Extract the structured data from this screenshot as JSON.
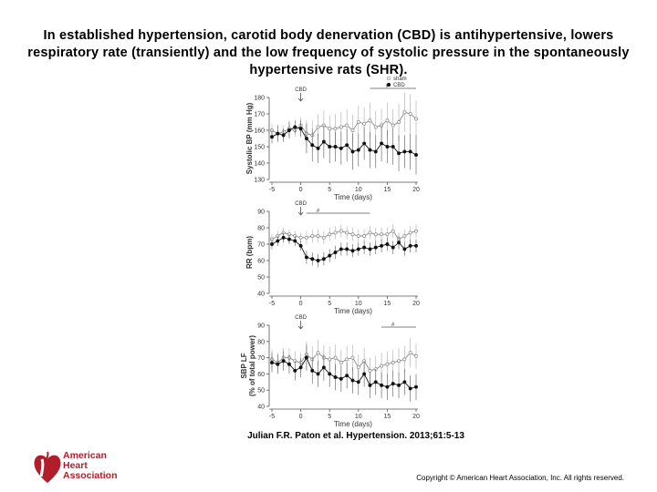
{
  "title": "In established hypertension, carotid body denervation (CBD) is antihypertensive, lowers respiratory rate (transiently) and the low frequency of systolic pressure in the spontaneously hypertensive rats (SHR).",
  "citation": "Julian F.R. Paton et al. Hypertension. 2013;61:5-13",
  "copyright": "Copyright © American Heart Association, Inc. All rights reserved.",
  "logo": {
    "line1": "American",
    "line2": "Heart",
    "line3": "Association",
    "color": "#b11d2b"
  },
  "chart_data": [
    {
      "type": "line",
      "ylabel": "Systolic BP (mm Hg)",
      "xlabel": "Time (days)",
      "xlim": [
        -5,
        20
      ],
      "ylim": [
        130,
        180
      ],
      "xticks": [
        -5,
        0,
        5,
        10,
        15,
        20
      ],
      "yticks": [
        130,
        140,
        150,
        160,
        170,
        180
      ],
      "annotation": "CBD",
      "significance": "#",
      "legend": [
        "sham",
        "CBD"
      ],
      "legend_position": "top-right",
      "series": [
        {
          "name": "sham",
          "marker": "open",
          "x": [
            -5,
            -4,
            -3,
            -2,
            -1,
            0,
            1,
            2,
            3,
            4,
            5,
            6,
            7,
            8,
            9,
            10,
            11,
            12,
            13,
            14,
            15,
            16,
            17,
            18,
            19,
            20
          ],
          "y": [
            160,
            158,
            159,
            161,
            160,
            163,
            158,
            157,
            162,
            163,
            161,
            161,
            162,
            163,
            160,
            165,
            164,
            166,
            162,
            163,
            166,
            163,
            165,
            171,
            170,
            167
          ],
          "err": [
            4,
            5,
            4,
            5,
            4,
            5,
            8,
            9,
            8,
            9,
            8,
            9,
            9,
            10,
            9,
            10,
            10,
            11,
            10,
            10,
            11,
            10,
            11,
            12,
            12,
            11
          ]
        },
        {
          "name": "CBD",
          "marker": "filled",
          "x": [
            -5,
            -4,
            -3,
            -2,
            -1,
            0,
            1,
            2,
            3,
            4,
            5,
            6,
            7,
            8,
            9,
            10,
            11,
            12,
            13,
            14,
            15,
            16,
            17,
            18,
            19,
            20
          ],
          "y": [
            156,
            158,
            157,
            160,
            162,
            161,
            155,
            151,
            149,
            153,
            150,
            150,
            149,
            151,
            147,
            148,
            152,
            148,
            147,
            152,
            150,
            150,
            146,
            147,
            147,
            145
          ],
          "err": [
            4,
            5,
            4,
            5,
            4,
            5,
            9,
            10,
            9,
            10,
            10,
            9,
            10,
            10,
            11,
            10,
            10,
            11,
            10,
            11,
            10,
            11,
            11,
            10,
            11,
            12
          ]
        }
      ]
    },
    {
      "type": "line",
      "ylabel": "RR (bpm)",
      "xlabel": "Time (days)",
      "xlim": [
        -5,
        20
      ],
      "ylim": [
        40,
        90
      ],
      "xticks": [
        -5,
        0,
        5,
        10,
        15,
        20
      ],
      "yticks": [
        40,
        50,
        60,
        70,
        80,
        90
      ],
      "annotation": "CBD",
      "significance": "#",
      "series": [
        {
          "name": "sham",
          "marker": "open",
          "x": [
            -5,
            -4,
            -3,
            -2,
            -1,
            0,
            1,
            2,
            3,
            4,
            5,
            6,
            7,
            8,
            9,
            10,
            11,
            12,
            13,
            14,
            15,
            16,
            17,
            18,
            19,
            20
          ],
          "y": [
            73,
            75,
            77,
            76,
            75,
            74,
            74,
            75,
            75,
            74,
            76,
            77,
            78,
            77,
            76,
            75,
            75,
            77,
            76,
            76,
            76,
            78,
            73,
            75,
            77,
            78
          ],
          "err": [
            3,
            3,
            3,
            3,
            3,
            3,
            4,
            4,
            4,
            4,
            4,
            4,
            4,
            4,
            4,
            4,
            4,
            4,
            4,
            4,
            4,
            4,
            4,
            4,
            4,
            4
          ]
        },
        {
          "name": "CBD",
          "marker": "filled",
          "x": [
            -5,
            -4,
            -3,
            -2,
            -1,
            0,
            1,
            2,
            3,
            4,
            5,
            6,
            7,
            8,
            9,
            10,
            11,
            12,
            13,
            14,
            15,
            16,
            17,
            18,
            19,
            20
          ],
          "y": [
            70,
            72,
            74,
            73,
            72,
            69,
            62,
            61,
            60,
            61,
            63,
            65,
            67,
            67,
            66,
            67,
            68,
            67,
            68,
            69,
            70,
            68,
            71,
            67,
            69,
            69
          ],
          "err": [
            3,
            3,
            3,
            3,
            3,
            3,
            4,
            4,
            4,
            4,
            4,
            4,
            4,
            4,
            4,
            4,
            4,
            4,
            4,
            4,
            4,
            4,
            4,
            4,
            4,
            4
          ]
        }
      ]
    },
    {
      "type": "line",
      "ylabel": "SBP LF (% of total power)",
      "xlabel": "Time (days)",
      "xlim": [
        -5,
        20
      ],
      "ylim": [
        40,
        90
      ],
      "xticks": [
        -5,
        0,
        5,
        10,
        15,
        20
      ],
      "yticks": [
        40,
        50,
        60,
        70,
        80,
        90
      ],
      "annotation": "CBD",
      "significance": "#",
      "series": [
        {
          "name": "sham",
          "marker": "open",
          "x": [
            -5,
            -4,
            -3,
            -2,
            -1,
            0,
            1,
            2,
            3,
            4,
            5,
            6,
            7,
            8,
            9,
            10,
            11,
            12,
            13,
            14,
            15,
            16,
            17,
            18,
            19,
            20
          ],
          "y": [
            69,
            67,
            70,
            70,
            68,
            67,
            72,
            69,
            73,
            70,
            69,
            70,
            67,
            69,
            70,
            64,
            68,
            62,
            63,
            65,
            66,
            67,
            68,
            69,
            73,
            71
          ],
          "err": [
            6,
            6,
            6,
            6,
            6,
            6,
            8,
            8,
            8,
            8,
            8,
            8,
            8,
            8,
            8,
            8,
            8,
            8,
            8,
            8,
            8,
            8,
            8,
            8,
            9,
            8
          ]
        },
        {
          "name": "CBD",
          "marker": "filled",
          "x": [
            -5,
            -4,
            -3,
            -2,
            -1,
            0,
            1,
            2,
            3,
            4,
            5,
            6,
            7,
            8,
            9,
            10,
            11,
            12,
            13,
            14,
            15,
            16,
            17,
            18,
            19,
            20
          ],
          "y": [
            67,
            66,
            68,
            66,
            62,
            64,
            70,
            62,
            60,
            64,
            60,
            58,
            57,
            59,
            56,
            55,
            60,
            53,
            55,
            53,
            52,
            54,
            53,
            55,
            51,
            52
          ],
          "err": [
            6,
            6,
            6,
            6,
            6,
            6,
            8,
            8,
            8,
            8,
            8,
            8,
            8,
            8,
            8,
            8,
            8,
            8,
            8,
            8,
            8,
            8,
            8,
            8,
            8,
            8
          ]
        }
      ]
    }
  ]
}
